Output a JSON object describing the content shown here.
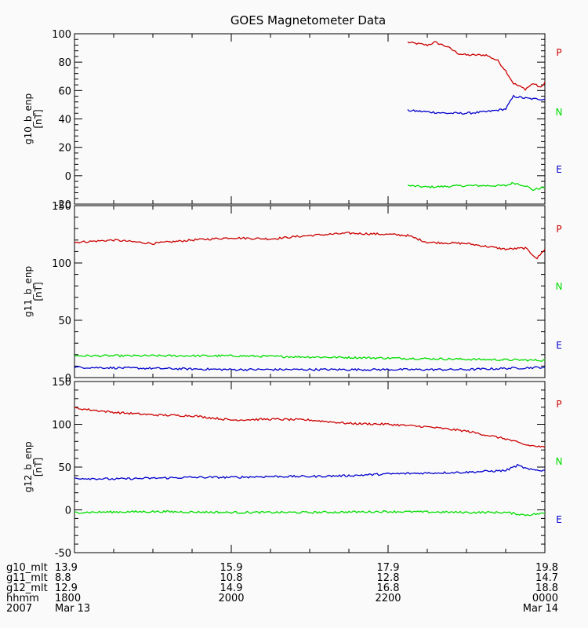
{
  "chart_data": {
    "type": "line",
    "title": "GOES Magnetometer Data",
    "x_range_hours": [
      18,
      24
    ],
    "panels": [
      {
        "ylabel": "g10_b_enp",
        "units": "[nT]",
        "ylim": [
          -20,
          100
        ],
        "yticks": [
          -20,
          0,
          20,
          40,
          60,
          80,
          100
        ],
        "series": [
          {
            "name": "P",
            "color": "#cc0000",
            "x": [
              22.25,
              22.5,
              22.6,
              22.75,
              22.9,
              23.0,
              23.25,
              23.4,
              23.5,
              23.6,
              23.75,
              23.85,
              23.95,
              24.0
            ],
            "y": [
              94,
              92,
              94,
              91,
              86,
              85,
              85,
              81,
              74,
              65,
              61,
              65,
              62,
              66
            ]
          },
          {
            "name": "N",
            "color": "#00dd00",
            "x": [
              22.25,
              22.5,
              23.0,
              23.25,
              23.5,
              23.6,
              23.75,
              23.85,
              24.0
            ],
            "y": [
              -7,
              -8,
              -7,
              -7,
              -7,
              -5,
              -7,
              -10,
              -8
            ]
          },
          {
            "name": "E",
            "color": "#0000cc",
            "x": [
              22.25,
              22.5,
              22.75,
              23.0,
              23.25,
              23.5,
              23.6,
              23.7,
              23.85,
              24.0
            ],
            "y": [
              46,
              45,
              44,
              44,
              45,
              47,
              56,
              55,
              54,
              54
            ]
          }
        ]
      },
      {
        "ylabel": "g11_b_enp",
        "units": "[nT]",
        "ylim": [
          0,
          150
        ],
        "yticks": [
          0,
          50,
          100,
          150
        ],
        "series": [
          {
            "name": "P",
            "color": "#cc0000",
            "x": [
              18,
              18.5,
              19,
              19.5,
              20,
              20.5,
              21,
              21.5,
              22,
              22.25,
              22.5,
              23,
              23.5,
              23.75,
              23.9,
              24.0
            ],
            "y": [
              118,
              120,
              117,
              120,
              122,
              121,
              124,
              126,
              125,
              124,
              118,
              117,
              112,
              113,
              104,
              112
            ]
          },
          {
            "name": "N",
            "color": "#00dd00",
            "x": [
              18,
              19,
              20,
              21,
              22,
              23,
              24
            ],
            "y": [
              19,
              19,
              19,
              18,
              17,
              16,
              15
            ]
          },
          {
            "name": "E",
            "color": "#0000cc",
            "x": [
              18,
              19,
              20,
              21,
              22,
              23,
              24
            ],
            "y": [
              9,
              8,
              7,
              7,
              7,
              7,
              9
            ]
          }
        ]
      },
      {
        "ylabel": "g12_b_enp",
        "units": "[nT]",
        "ylim": [
          -50,
          150
        ],
        "yticks": [
          -50,
          0,
          50,
          100,
          150
        ],
        "series": [
          {
            "name": "P",
            "color": "#cc0000",
            "x": [
              18,
              18.5,
              19,
              19.5,
              20,
              20.5,
              21,
              21.5,
              22,
              22.5,
              23,
              23.5,
              23.75,
              24.0
            ],
            "y": [
              119,
              114,
              111,
              110,
              105,
              106,
              105,
              101,
              100,
              97,
              92,
              83,
              76,
              73
            ]
          },
          {
            "name": "N",
            "color": "#00dd00",
            "x": [
              18,
              19,
              20,
              21,
              22,
              23,
              23.5,
              23.75,
              24.0
            ],
            "y": [
              -3,
              -2,
              -3,
              -3,
              -2,
              -3,
              -3,
              -6,
              -4
            ]
          },
          {
            "name": "E",
            "color": "#0000cc",
            "x": [
              18,
              18.5,
              19,
              19.5,
              20,
              20.5,
              21,
              21.5,
              22,
              22.5,
              23,
              23.5,
              23.65,
              23.8,
              24.0
            ],
            "y": [
              37,
              36,
              37,
              38,
              38,
              39,
              39,
              40,
              42,
              43,
              44,
              46,
              52,
              47,
              46
            ]
          }
        ]
      }
    ],
    "x_labels": {
      "row_labels": [
        "g10_mlt",
        "g11_mlt",
        "g12_mlt",
        "hhmm",
        "2007"
      ],
      "columns": [
        {
          "x": 18,
          "values": [
            "13.9",
            "8.8",
            "12.9",
            "1800",
            "Mar 13"
          ]
        },
        {
          "x": 20,
          "values": [
            "15.9",
            "10.8",
            "14.9",
            "2000",
            ""
          ]
        },
        {
          "x": 22,
          "values": [
            "17.9",
            "12.8",
            "16.8",
            "2200",
            ""
          ]
        },
        {
          "x": 24,
          "values": [
            "19.8",
            "14.7",
            "18.8",
            "0000",
            "Mar 14"
          ]
        }
      ]
    }
  }
}
